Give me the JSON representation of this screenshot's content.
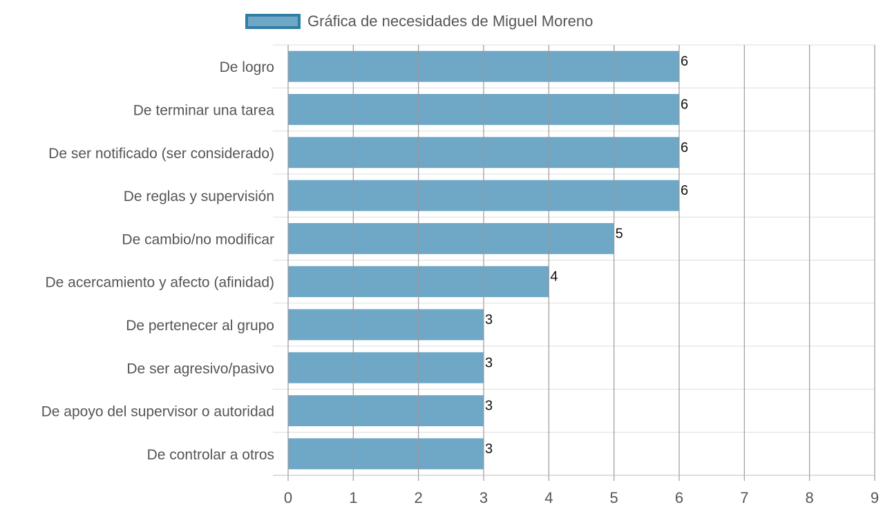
{
  "chart_data": {
    "type": "bar",
    "orientation": "horizontal",
    "categories": [
      "De logro",
      "De terminar una tarea",
      "De ser notificado (ser considerado)",
      "De reglas y supervisión",
      "De cambio/no modificar",
      "De acercamiento y afecto (afinidad)",
      "De pertenecer al grupo",
      "De ser agresivo/pasivo",
      "De apoyo del supervisor o autoridad",
      "De controlar a otros"
    ],
    "series": [
      {
        "name": "Gráfica de necesidades de Miguel Moreno",
        "values": [
          6,
          6,
          6,
          6,
          5,
          4,
          3,
          3,
          3,
          3
        ]
      }
    ],
    "x_ticks": [
      "0",
      "1",
      "2",
      "3",
      "4",
      "5",
      "6",
      "7",
      "8",
      "9"
    ],
    "xlim": [
      0,
      9
    ],
    "grid": true,
    "legend_position": "top",
    "data_labels": true,
    "colors": {
      "bar_fill": "#6fa7c6",
      "legend_border": "#2f7ea3",
      "grid_vertical": "#999999",
      "grid_horizontal": "#dddddd",
      "label_text": "#555555",
      "value_text": "#111111"
    }
  }
}
